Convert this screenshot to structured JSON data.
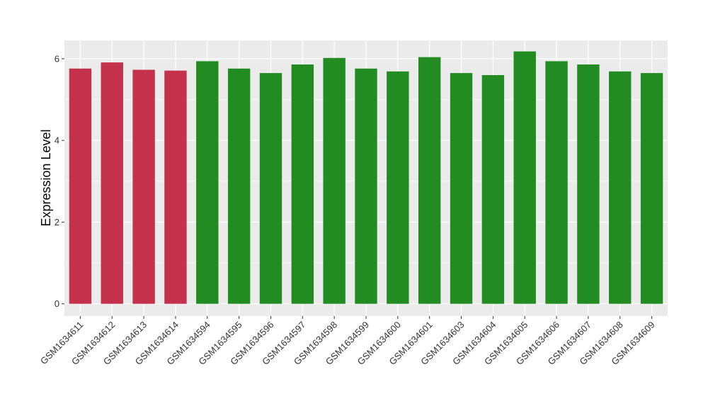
{
  "chart_data": {
    "type": "bar",
    "title": "",
    "xlabel": "",
    "ylabel": "Expression Level",
    "ylim": [
      -0.3,
      6.45
    ],
    "yticks": [
      0,
      2,
      4,
      6
    ],
    "grid": true,
    "categories": [
      "GSM1634611",
      "GSM1634612",
      "GSM1634613",
      "GSM1634614",
      "GSM1634594",
      "GSM1634595",
      "GSM1634596",
      "GSM1634597",
      "GSM1634598",
      "GSM1634599",
      "GSM1634600",
      "GSM1634601",
      "GSM1634603",
      "GSM1634604",
      "GSM1634605",
      "GSM1634606",
      "GSM1634607",
      "GSM1634608",
      "GSM1634609"
    ],
    "values": [
      5.76,
      5.91,
      5.73,
      5.71,
      5.94,
      5.76,
      5.65,
      5.86,
      6.02,
      5.76,
      5.69,
      6.04,
      5.65,
      5.6,
      6.18,
      5.94,
      5.86,
      5.69,
      5.65
    ],
    "groups": [
      "a",
      "a",
      "a",
      "a",
      "b",
      "b",
      "b",
      "b",
      "b",
      "b",
      "b",
      "b",
      "b",
      "b",
      "b",
      "b",
      "b",
      "b",
      "b"
    ],
    "colors": {
      "a": "#c3314a",
      "b": "#228b22",
      "panel": "#ebebeb",
      "grid": "#ffffff"
    }
  }
}
